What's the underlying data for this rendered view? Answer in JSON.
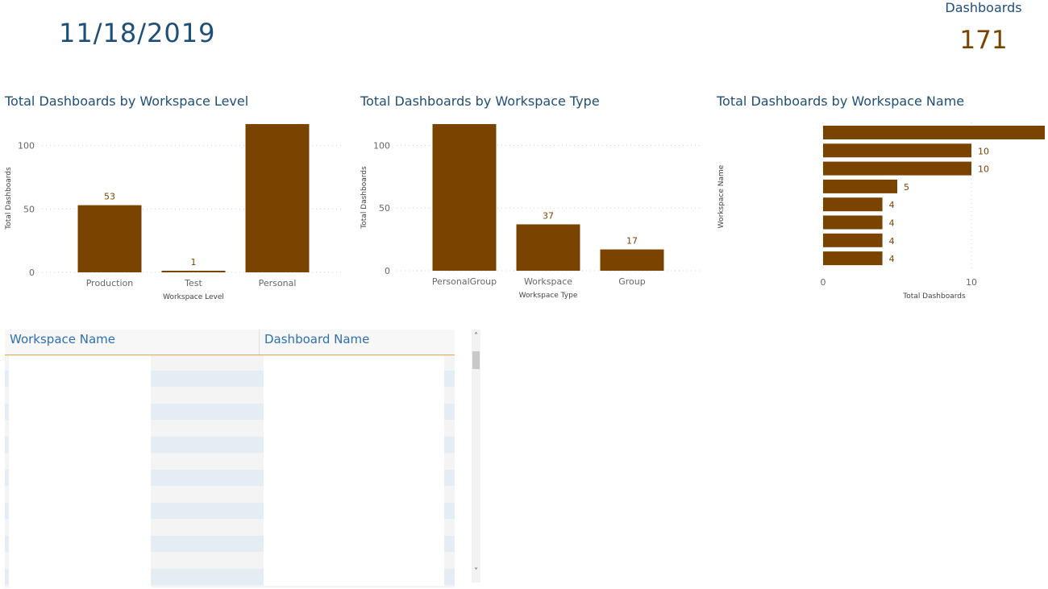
{
  "header": {
    "date": "11/18/2019"
  },
  "card": {
    "label": "Dashboards",
    "value": "171"
  },
  "colors": {
    "bar": "#7a4400",
    "title": "#1f4e79",
    "accent": "#e8a448",
    "stripe": "#e3edf3"
  },
  "chart_data": [
    {
      "type": "bar",
      "title": "Total Dashboards by Workspace Level",
      "xlabel": "Workspace Level",
      "ylabel": "Total Dashboards",
      "categories": [
        "Production",
        "Test",
        "Personal"
      ],
      "values": [
        53,
        1,
        117
      ],
      "data_labels": [
        "53",
        "1",
        ""
      ],
      "ylim": [
        0,
        117
      ],
      "yticks": [
        0,
        50,
        100
      ],
      "grid": true
    },
    {
      "type": "bar",
      "title": "Total Dashboards by Workspace Type",
      "xlabel": "Workspace Type",
      "ylabel": "Total Dashboards",
      "categories": [
        "PersonalGroup",
        "Workspace",
        "Group"
      ],
      "values": [
        117,
        37,
        17
      ],
      "data_labels": [
        "",
        "37",
        "17"
      ],
      "ylim": [
        0,
        117
      ],
      "yticks": [
        0,
        50,
        100
      ],
      "grid": true
    },
    {
      "type": "bar",
      "orientation": "horizontal",
      "title": "Total Dashboards by Workspace Name",
      "xlabel": "Total Dashboards",
      "ylabel": "Workspace Name",
      "categories": [
        "",
        "",
        "",
        "",
        "",
        "",
        "",
        ""
      ],
      "values": [
        15,
        10,
        10,
        5,
        4,
        4,
        4,
        4
      ],
      "data_labels": [
        "",
        "10",
        "10",
        "5",
        "4",
        "4",
        "4",
        "4"
      ],
      "xlim": [
        0,
        15
      ],
      "xticks": [
        0,
        10
      ],
      "grid": true
    }
  ],
  "table": {
    "columns": [
      "Workspace Name",
      "Dashboard Name"
    ],
    "scroll_up": "˄",
    "scroll_down": "˅"
  }
}
